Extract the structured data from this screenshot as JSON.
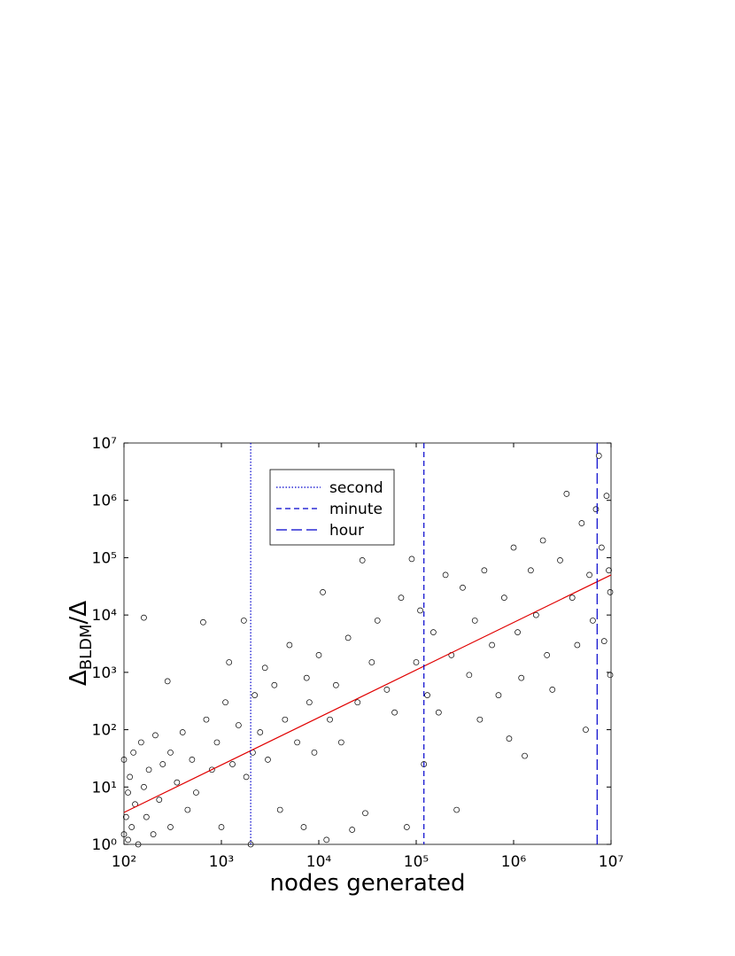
{
  "chart_data": {
    "type": "scatter",
    "xlabel": "nodes generated",
    "ylabel": [
      "Δ",
      "BLDM",
      "/Δ"
    ],
    "log_x": true,
    "log_y": true,
    "marker_color": "#000000",
    "xlim": [
      100,
      10000000
    ],
    "ylim": [
      1,
      10000000
    ],
    "xticks": [
      {
        "value": 100,
        "label": "10²"
      },
      {
        "value": 1000,
        "label": "10³"
      },
      {
        "value": 10000,
        "label": "10⁴"
      },
      {
        "value": 100000,
        "label": "10⁵"
      },
      {
        "value": 1000000,
        "label": "10⁶"
      },
      {
        "value": 10000000,
        "label": "10⁷"
      }
    ],
    "yticks": [
      {
        "value": 1,
        "label": "10⁰"
      },
      {
        "value": 10,
        "label": "10¹"
      },
      {
        "value": 100,
        "label": "10²"
      },
      {
        "value": 1000,
        "label": "10³"
      },
      {
        "value": 10000,
        "label": "10⁴"
      },
      {
        "value": 100000,
        "label": "10⁵"
      },
      {
        "value": 1000000,
        "label": "10⁶"
      },
      {
        "value": 10000000,
        "label": "10⁷"
      }
    ],
    "x": [
      100,
      100,
      105,
      110,
      110,
      115,
      120,
      125,
      130,
      140,
      150,
      160,
      160,
      170,
      180,
      200,
      210,
      230,
      250,
      280,
      300,
      300,
      350,
      400,
      450,
      500,
      550,
      650,
      700,
      800,
      900,
      1000,
      1100,
      1200,
      1300,
      1500,
      1700,
      1800,
      2000,
      2100,
      2200,
      2500,
      2800,
      3000,
      3500,
      4000,
      4500,
      5000,
      6000,
      7000,
      7500,
      8000,
      9000,
      10000,
      11000,
      12000,
      13000,
      15000,
      17000,
      20000,
      22000,
      25000,
      28000,
      30000,
      35000,
      40000,
      50000,
      60000,
      70000,
      80000,
      90000,
      100000,
      110000,
      120000,
      130000,
      150000,
      170000,
      200000,
      230000,
      260000,
      300000,
      350000,
      400000,
      450000,
      500000,
      600000,
      700000,
      800000,
      900000,
      1000000,
      1100000,
      1200000,
      1300000,
      1500000,
      1700000,
      2000000,
      2200000,
      2500000,
      3000000,
      3500000,
      4000000,
      4500000,
      5000000,
      5500000,
      6000000,
      6500000,
      7000000,
      7500000,
      8000000,
      8500000,
      9000000,
      9500000,
      9800000,
      9800000
    ],
    "values": [
      1.5,
      30,
      3,
      8,
      1.2,
      15,
      2,
      40,
      5,
      1,
      60,
      9000,
      10,
      3,
      20,
      1.5,
      80,
      6,
      25,
      700,
      2,
      40,
      12,
      90,
      4,
      30,
      8,
      7500,
      150,
      20,
      60,
      2,
      300,
      1500,
      25,
      120,
      8000,
      15,
      1,
      40,
      400,
      90,
      1200,
      30,
      600,
      4,
      150,
      3000,
      60,
      2,
      800,
      300,
      40,
      2000,
      25000,
      1.2,
      150,
      600,
      60,
      4000,
      1.8,
      300,
      90000,
      3.5,
      1500,
      8000,
      500,
      200,
      20000,
      2,
      95000,
      1500,
      12000,
      25,
      400,
      5000,
      200,
      50000,
      2000,
      4,
      30000,
      900,
      8000,
      150,
      60000,
      3000,
      400,
      20000,
      70,
      150000,
      5000,
      800,
      35,
      60000,
      10000,
      200000,
      2000,
      500,
      90000,
      1300000,
      20000,
      3000,
      400000,
      100,
      50000,
      8000,
      700000,
      6000000,
      150000,
      3500,
      1200000,
      60000,
      900,
      25000
    ],
    "fit": {
      "color": "#e00000",
      "x": [
        100,
        10000000
      ],
      "values": [
        3.6,
        50000
      ]
    },
    "vlines": [
      {
        "name": "second",
        "x": 2000,
        "color": "#0000cc",
        "dash": "1.5,2"
      },
      {
        "name": "minute",
        "x": 120000,
        "color": "#0000cc",
        "dash": "6,4"
      },
      {
        "name": "hour",
        "x": 7200000,
        "color": "#0000cc",
        "dash": "12,5"
      }
    ]
  }
}
